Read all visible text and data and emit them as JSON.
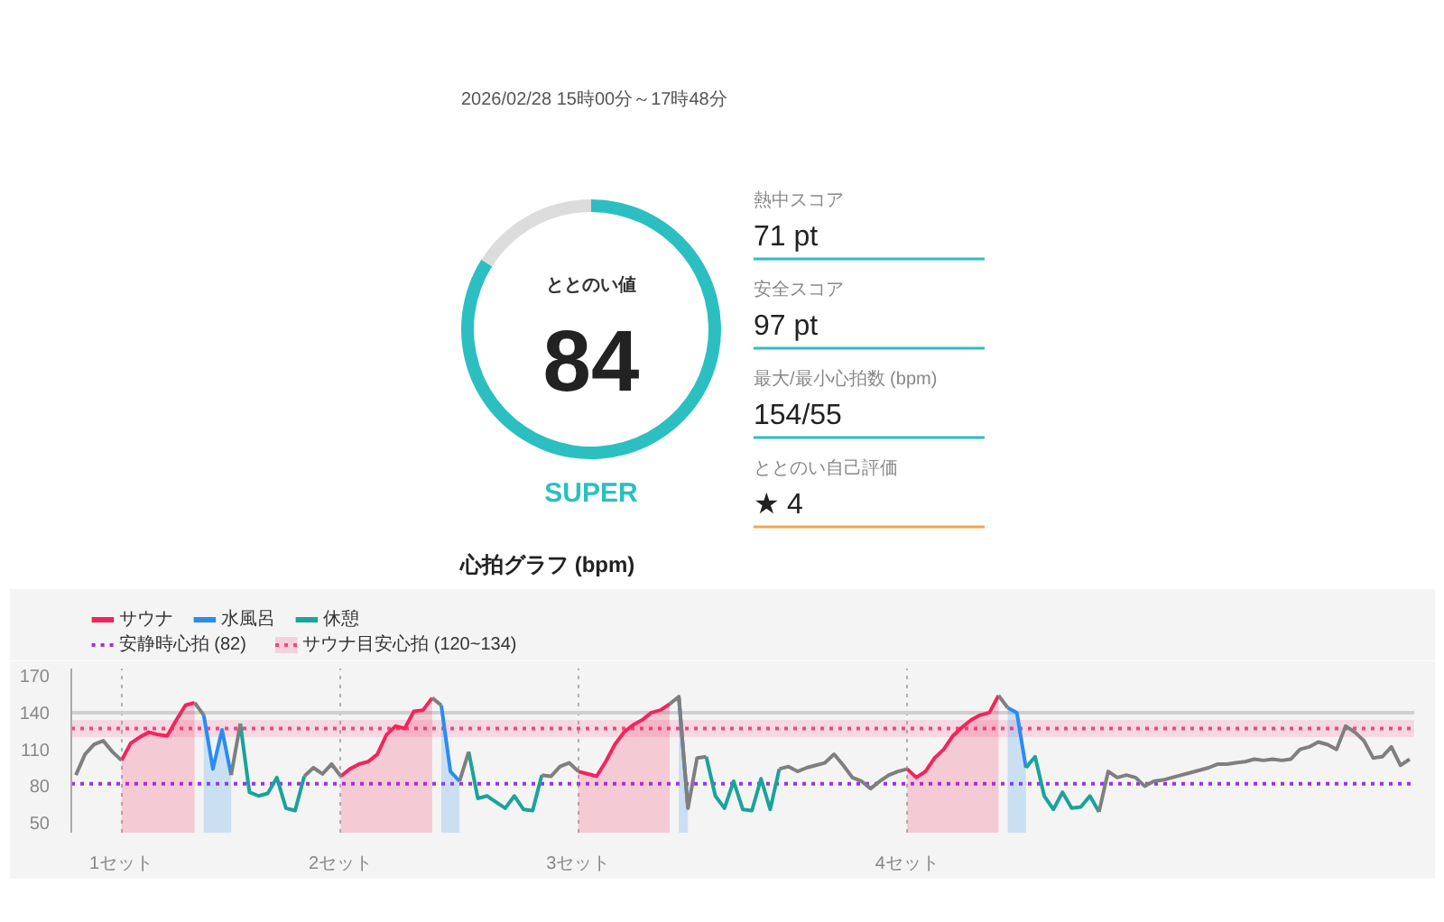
{
  "chart_data": [
    {
      "type": "donut",
      "title": "ととのい値",
      "categories": [
        null,
        null
      ],
      "values": [
        84,
        16
      ],
      "colors": [
        "#2bbfc1",
        "#dcdcdc"
      ],
      "value_labels": [
        "84",
        null
      ],
      "annotations": [
        "2026/02/28 15時00分～17時48分",
        "SUPER"
      ]
    },
    {
      "type": "other",
      "annotations": [
        "熱中スコア",
        "71 pt",
        "安全スコア",
        "97 pt",
        "最大/最小心拍数 (bpm)",
        "154/55",
        "ととのい自己評価",
        "★ 4"
      ],
      "colors": [
        "#2bbfc1",
        "#2bbfc1",
        "#2bbfc1",
        "#f5a54a"
      ]
    },
    {
      "type": "line",
      "title": "心拍グラフ (bpm)",
      "categories": [
        null,
        null,
        null,
        null,
        null,
        "1セット",
        null,
        null,
        null,
        null,
        null,
        null,
        null,
        null,
        null,
        null,
        null,
        null,
        null,
        null,
        null,
        null,
        null,
        null,
        null,
        null,
        null,
        null,
        null,
        "2セット",
        null,
        null,
        null,
        null,
        null,
        null,
        null,
        null,
        null,
        null,
        null,
        null,
        null,
        null,
        null,
        null,
        null,
        null,
        null,
        null,
        null,
        null,
        null,
        null,
        null,
        "3セット",
        null,
        null,
        null,
        null,
        null,
        null,
        null,
        null,
        null,
        null,
        null,
        null,
        null,
        null,
        null,
        null,
        null,
        null,
        null,
        null,
        null,
        null,
        null,
        null,
        null,
        null,
        null,
        null,
        null,
        null,
        null,
        null,
        null,
        null,
        null,
        "4セット",
        null,
        null,
        null,
        null,
        null,
        null,
        null,
        null,
        null,
        null,
        null,
        null,
        null,
        null,
        null,
        null,
        null,
        null,
        null,
        null,
        null,
        null,
        null,
        null,
        null,
        null,
        null,
        null,
        null,
        null,
        null,
        null,
        null,
        null,
        null,
        null,
        null,
        null,
        null,
        null,
        null,
        null,
        null,
        null,
        null,
        null,
        null,
        null,
        null,
        null,
        null,
        null,
        null,
        null,
        null
      ],
      "ylim": [
        42,
        176
      ],
      "yticks": [
        50,
        80,
        110,
        140,
        170
      ],
      "grid": "x",
      "legend": "top left",
      "series": [
        {
          "name": "サウナ",
          "type": "area",
          "color": "#f4245c",
          "values": [
            null,
            null,
            null,
            null,
            null,
            101,
            115,
            120,
            124,
            122,
            121,
            134,
            146,
            148,
            null,
            null,
            null,
            null,
            null,
            null,
            null,
            null,
            null,
            null,
            null,
            null,
            null,
            null,
            null,
            88,
            94,
            98,
            100,
            106,
            122,
            129,
            127,
            141,
            142,
            152,
            null,
            null,
            null,
            null,
            null,
            null,
            null,
            null,
            null,
            null,
            null,
            null,
            null,
            null,
            null,
            92,
            90,
            88,
            100,
            114,
            124,
            130,
            134,
            140,
            142,
            147,
            null,
            null,
            null,
            null,
            null,
            null,
            null,
            null,
            null,
            null,
            null,
            null,
            null,
            null,
            null,
            null,
            null,
            null,
            null,
            null,
            null,
            null,
            null,
            null,
            null,
            94,
            87,
            92,
            103,
            110,
            121,
            128,
            134,
            138,
            140,
            154,
            null,
            null,
            null,
            null,
            null,
            null,
            null,
            null,
            null,
            null,
            null,
            null,
            null,
            null,
            null,
            null,
            null,
            null,
            null,
            null,
            null,
            null,
            null,
            null,
            null,
            null,
            null,
            null,
            null,
            null,
            null,
            null,
            null,
            null,
            null,
            null,
            null,
            null,
            null,
            null,
            null,
            null,
            null,
            null,
            null
          ]
        },
        {
          "name": "水風呂",
          "type": "area",
          "color": "#2a8cf0",
          "values": [
            null,
            null,
            null,
            null,
            null,
            null,
            null,
            null,
            null,
            null,
            null,
            null,
            null,
            null,
            138,
            94,
            126,
            89,
            null,
            null,
            null,
            null,
            null,
            null,
            null,
            null,
            null,
            null,
            null,
            null,
            null,
            null,
            null,
            null,
            null,
            null,
            null,
            null,
            null,
            null,
            146,
            92,
            84,
            null,
            null,
            null,
            null,
            null,
            null,
            null,
            null,
            null,
            null,
            null,
            null,
            null,
            null,
            null,
            null,
            null,
            null,
            null,
            null,
            null,
            null,
            null,
            153,
            62,
            null,
            null,
            null,
            null,
            null,
            null,
            null,
            null,
            null,
            null,
            null,
            null,
            null,
            null,
            null,
            null,
            null,
            null,
            null,
            null,
            null,
            null,
            null,
            null,
            null,
            null,
            null,
            null,
            null,
            null,
            null,
            null,
            null,
            null,
            144,
            140,
            95,
            null,
            null,
            null,
            null,
            null,
            null,
            null,
            null,
            null,
            null,
            null,
            null,
            null,
            null,
            null,
            null,
            null,
            null,
            null,
            null,
            null,
            null,
            null,
            null,
            null,
            null,
            null,
            null,
            null,
            null,
            null,
            null,
            null,
            null,
            null,
            null,
            null,
            null,
            null,
            null,
            null,
            null
          ]
        },
        {
          "name": "休憩",
          "type": "line",
          "color": "#19a39b",
          "values": [
            null,
            null,
            null,
            null,
            null,
            null,
            null,
            null,
            null,
            null,
            null,
            null,
            null,
            null,
            null,
            null,
            null,
            null,
            131,
            75,
            72,
            74,
            87,
            62,
            60,
            88,
            null,
            null,
            null,
            null,
            null,
            null,
            null,
            null,
            null,
            null,
            null,
            null,
            null,
            null,
            null,
            null,
            null,
            108,
            70,
            72,
            67,
            62,
            72,
            61,
            60,
            89,
            null,
            null,
            null,
            null,
            null,
            null,
            null,
            null,
            null,
            null,
            null,
            null,
            null,
            null,
            null,
            null,
            null,
            104,
            72,
            62,
            84,
            61,
            60,
            86,
            61,
            94,
            null,
            null,
            null,
            null,
            null,
            null,
            null,
            null,
            null,
            null,
            null,
            null,
            null,
            null,
            null,
            null,
            null,
            null,
            null,
            null,
            null,
            null,
            null,
            null,
            null,
            null,
            95,
            104,
            72,
            61,
            75,
            62,
            63,
            72,
            59,
            null,
            null,
            null,
            null,
            null,
            null,
            null,
            null,
            null,
            null,
            null,
            null,
            null,
            null,
            null,
            null,
            null,
            null,
            null,
            null,
            null,
            null,
            null,
            null,
            null,
            null,
            null,
            null,
            null,
            null,
            null,
            null,
            null,
            null
          ]
        },
        {
          "type": "line",
          "color": "#7f7f7f",
          "values": [
            89,
            106,
            114,
            117,
            108,
            101,
            null,
            null,
            null,
            null,
            null,
            null,
            null,
            148,
            138,
            null,
            null,
            89,
            131,
            null,
            null,
            null,
            null,
            null,
            null,
            88,
            95,
            90,
            98,
            88,
            null,
            null,
            null,
            null,
            null,
            null,
            null,
            null,
            null,
            152,
            146,
            null,
            84,
            108,
            null,
            null,
            null,
            null,
            null,
            null,
            null,
            89,
            88,
            96,
            99,
            92,
            null,
            null,
            null,
            null,
            null,
            null,
            null,
            null,
            null,
            147,
            153,
            62,
            103,
            104,
            null,
            null,
            null,
            null,
            null,
            null,
            null,
            94,
            96,
            92,
            95,
            97,
            99,
            106,
            97,
            87,
            84,
            78,
            84,
            89,
            92,
            94,
            null,
            null,
            null,
            null,
            null,
            null,
            null,
            null,
            null,
            154,
            144,
            null,
            null,
            null,
            null,
            null,
            null,
            null,
            null,
            null,
            59,
            92,
            87,
            89,
            87,
            80,
            84,
            85,
            87,
            89,
            91,
            93,
            95,
            98,
            98,
            99,
            100,
            102,
            101,
            102,
            101,
            102,
            110,
            112,
            116,
            114,
            110,
            129,
            124,
            117,
            103,
            104,
            112,
            97,
            102
          ]
        }
      ],
      "ref_lines": [
        {
          "axis": "y",
          "value": 82,
          "label": "安静時心拍 (82)",
          "color": "#9b30f0",
          "line_style": "dotted"
        },
        {
          "axis": "y",
          "value": 140,
          "color": "#cfcfcf",
          "line_style": "solid"
        },
        {
          "axis": "y",
          "value": 127,
          "color": "#f5467d",
          "line_style": "dotted"
        }
      ],
      "bands": [
        {
          "axis": "y",
          "from": 120,
          "to": 134,
          "label": "サウナ目安心拍 (120~134)",
          "color": "#f5467d"
        }
      ]
    }
  ]
}
